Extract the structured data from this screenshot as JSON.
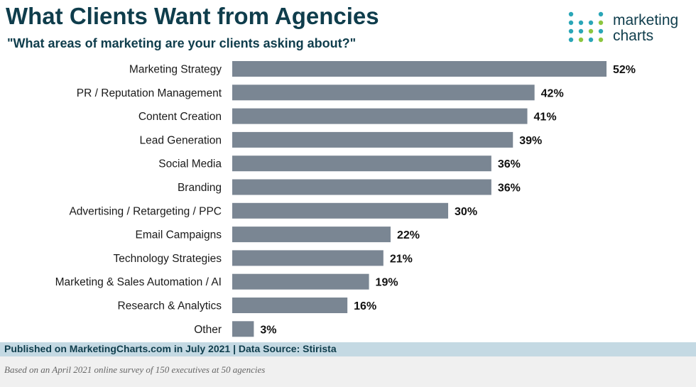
{
  "header": {
    "title": "What Clients Want from Agencies",
    "subtitle": "\"What areas of marketing are your clients asking about?\""
  },
  "logo": {
    "line1": "marketing",
    "line2": "charts",
    "dot_colors": [
      "#2aa6b7",
      "#2aa6b7",
      "#8cc63f",
      "#2aa6b7"
    ]
  },
  "chart_data": {
    "type": "bar",
    "orientation": "horizontal",
    "categories": [
      "Marketing Strategy",
      "PR / Reputation Management",
      "Content Creation",
      "Lead Generation",
      "Social Media",
      "Branding",
      "Advertising / Retargeting / PPC",
      "Email Campaigns",
      "Technology Strategies",
      "Marketing & Sales Automation / AI",
      "Research & Analytics",
      "Other"
    ],
    "values": [
      52,
      42,
      41,
      39,
      36,
      36,
      30,
      22,
      21,
      19,
      16,
      3
    ],
    "value_labels": [
      "52%",
      "42%",
      "41%",
      "39%",
      "36%",
      "36%",
      "30%",
      "22%",
      "21%",
      "19%",
      "16%",
      "3%"
    ],
    "unit": "%",
    "xlim": [
      0,
      52
    ],
    "bar_color": "#7a8693",
    "grid": false,
    "legend": "none"
  },
  "footer": {
    "published": "Published on MarketingCharts.com in July 2021 | Data Source: Stirista",
    "note": "Based on an April 2021 online survey of 150 executives at 50 agencies"
  }
}
